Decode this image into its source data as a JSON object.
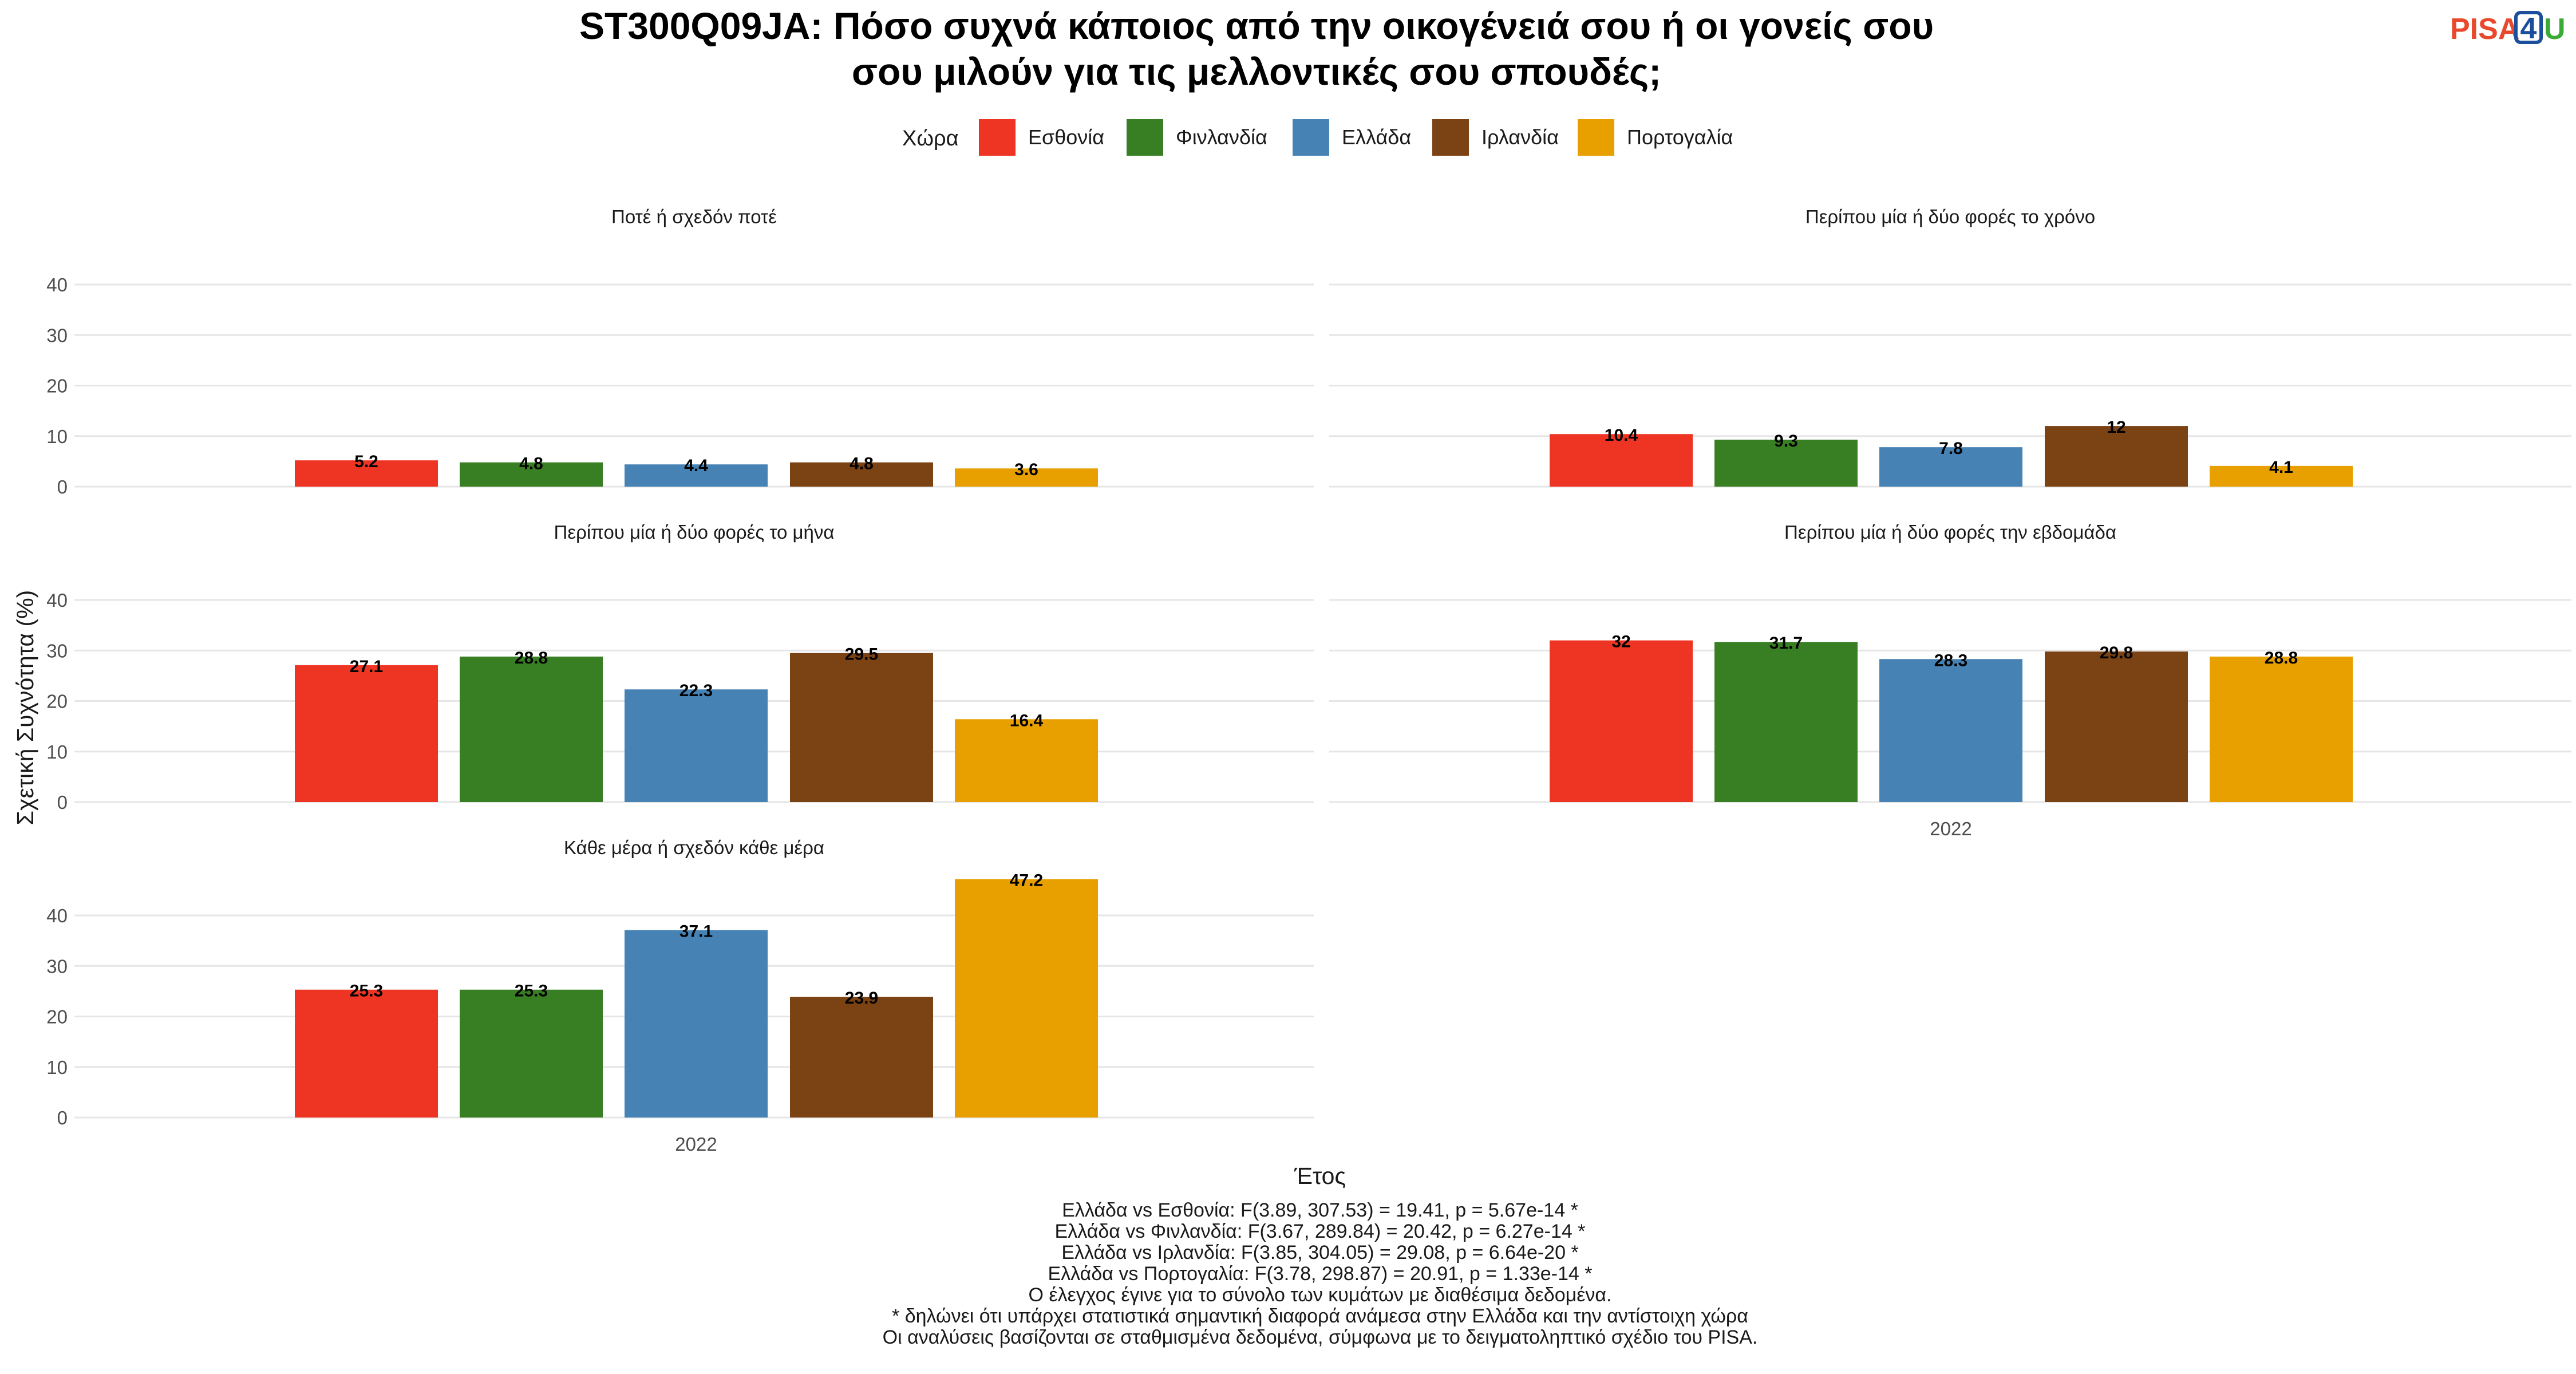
{
  "logo": {
    "part1": "PISA",
    "part2": "4",
    "part3": "U",
    "colors": {
      "part1": "#e8492d",
      "part2": "#1b4f9c",
      "part3": "#3aaa35"
    }
  },
  "chart_data": {
    "type": "bar",
    "title": "ST300Q09JA: Πόσο συχνά κάποιος από την οικογένειά σου ή οι γονείς σου σου μιλούν για τις μελλοντικές σου σπουδές;",
    "title_lines": [
      "ST300Q09JA: Πόσο συχνά κάποιος από την οικογένειά σου ή οι γονείς σου",
      "σου μιλούν για τις μελλοντικές σου σπουδές;"
    ],
    "xlabel": "Έτος",
    "ylabel": "Σχετική Συχνότητα (%)",
    "ylim": [
      0,
      47.2
    ],
    "yticks": [
      0,
      10,
      20,
      30,
      40
    ],
    "grid": true,
    "legend": {
      "title": "Χώρα",
      "placement": "top",
      "entries": [
        {
          "name": "Εσθονία",
          "color": "#ee3524"
        },
        {
          "name": "Φινλανδία",
          "color": "#387f24"
        },
        {
          "name": "Ελλάδα",
          "color": "#4682b4"
        },
        {
          "name": "Ιρλανδία",
          "color": "#7b4214"
        },
        {
          "name": "Πορτογαλία",
          "color": "#e8a000"
        }
      ]
    },
    "categories": [
      "2022"
    ],
    "panels": [
      {
        "title": "Ποτέ ή σχεδόν ποτέ",
        "values": [
          5.2,
          4.8,
          4.4,
          4.8,
          3.6
        ],
        "labels": [
          "5.2",
          "4.8",
          "4.4",
          "4.8",
          "3.6"
        ],
        "show_x_tick": false
      },
      {
        "title": "Περίπου μία ή δύο φορές το χρόνο",
        "values": [
          10.4,
          9.3,
          7.8,
          12,
          4.1
        ],
        "labels": [
          "10.4",
          "9.3",
          "7.8",
          "12",
          "4.1"
        ],
        "show_x_tick": false
      },
      {
        "title": "Περίπου μία ή δύο φορές το μήνα",
        "values": [
          27.1,
          28.8,
          22.3,
          29.5,
          16.4
        ],
        "labels": [
          "27.1",
          "28.8",
          "22.3",
          "29.5",
          "16.4"
        ],
        "show_x_tick": false
      },
      {
        "title": "Περίπου μία ή δύο φορές την εβδομάδα",
        "values": [
          32,
          31.7,
          28.3,
          29.8,
          28.8
        ],
        "labels": [
          "32",
          "31.7",
          "28.3",
          "29.8",
          "28.8"
        ],
        "show_x_tick": true
      },
      {
        "title": "Κάθε μέρα ή σχεδόν κάθε μέρα",
        "values": [
          25.3,
          25.3,
          37.1,
          23.9,
          47.2
        ],
        "labels": [
          "25.3",
          "25.3",
          "37.1",
          "23.9",
          "47.2"
        ],
        "show_x_tick": true
      }
    ]
  },
  "caption_lines": [
    "Ελλάδα vs Εσθονία: F(3.89, 307.53) = 19.41, p = 5.67e-14 *",
    "Ελλάδα vs Φινλανδία: F(3.67, 289.84) = 20.42, p = 6.27e-14 *",
    "Ελλάδα vs Ιρλανδία: F(3.85, 304.05) = 29.08, p = 6.64e-20 *",
    "Ελλάδα vs Πορτογαλία: F(3.78, 298.87) = 20.91, p = 1.33e-14 *",
    "Ο έλεγχος έγινε για το σύνολο των κυμάτων με διαθέσιμα δεδομένα.",
    "* δηλώνει ότι υπάρχει στατιστικά σημαντική διαφορά ανάμεσα στην Ελλάδα και την αντίστοιχη χώρα",
    "Οι αναλύσεις βασίζονται σε σταθμισμένα δεδομένα, σύμφωνα με το δειγματοληπτικό σχέδιο του PISA."
  ]
}
